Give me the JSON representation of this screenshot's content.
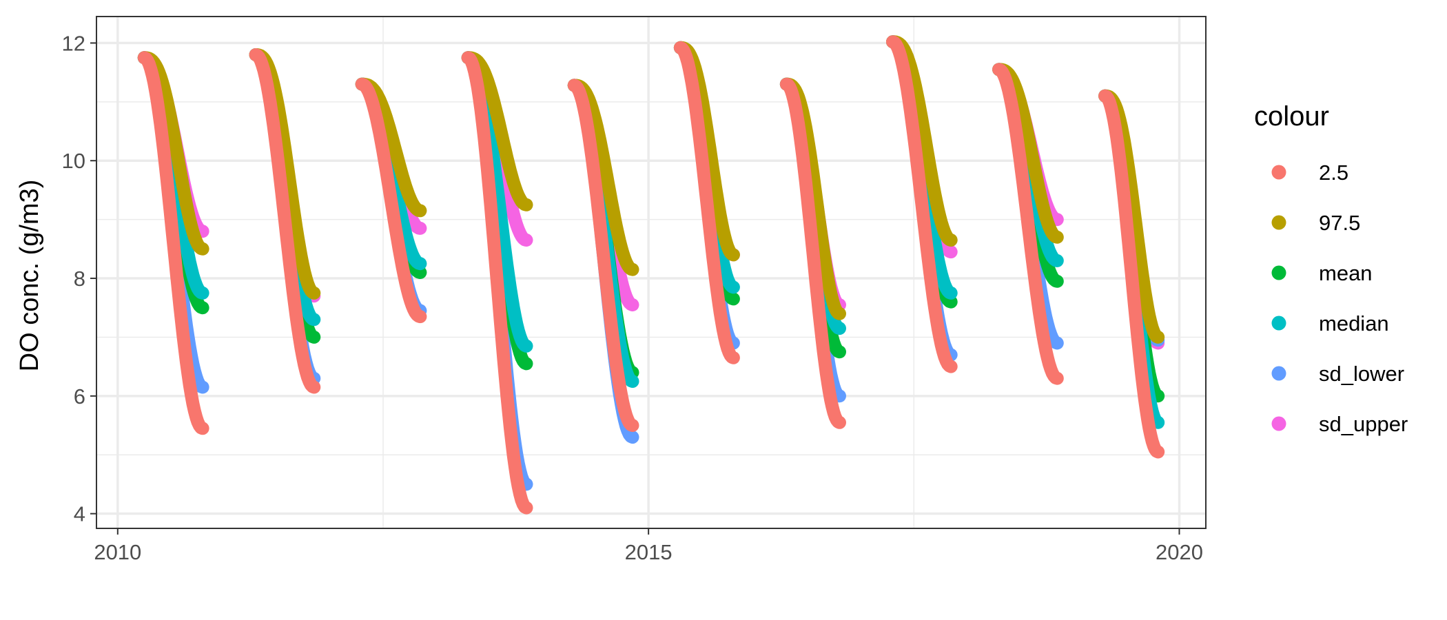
{
  "chart_data": {
    "type": "line",
    "title": "",
    "xlabel": "",
    "ylabel": "DO conc. (g/m3)",
    "xlim": [
      2009.8,
      2020.25
    ],
    "ylim": [
      3.75,
      12.45
    ],
    "x_ticks": [
      2010,
      2015,
      2020
    ],
    "x_tick_labels": [
      "2010",
      "2015",
      "2020"
    ],
    "y_ticks": [
      4,
      6,
      8,
      10,
      12
    ],
    "y_tick_labels": [
      "4",
      "6",
      "8",
      "10",
      "12"
    ],
    "grid": true,
    "legend": {
      "title": "colour",
      "placement": "right"
    },
    "seasons": [
      {
        "start": 2010.25,
        "end": 2010.8,
        "top": 11.75,
        "ends": {
          "2.5": 5.45,
          "97.5": 8.5,
          "mean": 7.5,
          "median": 7.75,
          "sd_lower": 6.15,
          "sd_upper": 8.8
        }
      },
      {
        "start": 2011.3,
        "end": 2011.85,
        "top": 11.8,
        "ends": {
          "2.5": 6.15,
          "97.5": 7.75,
          "mean": 7.0,
          "median": 7.3,
          "sd_lower": 6.3,
          "sd_upper": 7.7
        }
      },
      {
        "start": 2012.3,
        "end": 2012.85,
        "top": 11.3,
        "ends": {
          "2.5": 7.35,
          "97.5": 9.15,
          "mean": 8.1,
          "median": 8.25,
          "sd_lower": 7.45,
          "sd_upper": 8.85
        }
      },
      {
        "start": 2013.3,
        "end": 2013.85,
        "top": 11.75,
        "ends": {
          "2.5": 4.1,
          "97.5": 9.25,
          "mean": 6.55,
          "median": 6.85,
          "sd_lower": 4.5,
          "sd_upper": 8.65
        }
      },
      {
        "start": 2014.3,
        "end": 2014.85,
        "top": 11.28,
        "ends": {
          "2.5": 5.5,
          "97.5": 8.15,
          "mean": 6.4,
          "median": 6.25,
          "sd_lower": 5.3,
          "sd_upper": 7.55
        }
      },
      {
        "start": 2015.3,
        "end": 2015.8,
        "top": 11.92,
        "ends": {
          "2.5": 6.65,
          "97.5": 8.4,
          "mean": 7.65,
          "median": 7.85,
          "sd_lower": 6.9,
          "sd_upper": 8.4
        }
      },
      {
        "start": 2016.3,
        "end": 2016.8,
        "top": 11.3,
        "ends": {
          "2.5": 5.55,
          "97.5": 7.4,
          "mean": 6.75,
          "median": 7.15,
          "sd_lower": 6.0,
          "sd_upper": 7.55
        }
      },
      {
        "start": 2017.3,
        "end": 2017.85,
        "top": 12.02,
        "ends": {
          "2.5": 6.5,
          "97.5": 8.65,
          "mean": 7.6,
          "median": 7.75,
          "sd_lower": 6.7,
          "sd_upper": 8.45
        }
      },
      {
        "start": 2018.3,
        "end": 2018.85,
        "top": 11.55,
        "ends": {
          "2.5": 6.3,
          "97.5": 8.7,
          "mean": 7.95,
          "median": 8.3,
          "sd_lower": 6.9,
          "sd_upper": 9.0
        }
      },
      {
        "start": 2019.3,
        "end": 2019.8,
        "top": 11.1,
        "ends": {
          "2.5": 5.05,
          "97.5": 7.0,
          "mean": 6.0,
          "median": 5.55,
          "sd_lower": 6.95,
          "sd_upper": 6.9
        }
      }
    ],
    "series": [
      {
        "name": "2.5",
        "color": "#F8766D"
      },
      {
        "name": "97.5",
        "color": "#B79F00"
      },
      {
        "name": "mean",
        "color": "#00BA38"
      },
      {
        "name": "median",
        "color": "#00BFC4"
      },
      {
        "name": "sd_lower",
        "color": "#619CFF"
      },
      {
        "name": "sd_upper",
        "color": "#F564E3"
      }
    ],
    "draw_order": [
      "sd_upper",
      "sd_lower",
      "mean",
      "median",
      "97.5",
      "2.5"
    ]
  }
}
